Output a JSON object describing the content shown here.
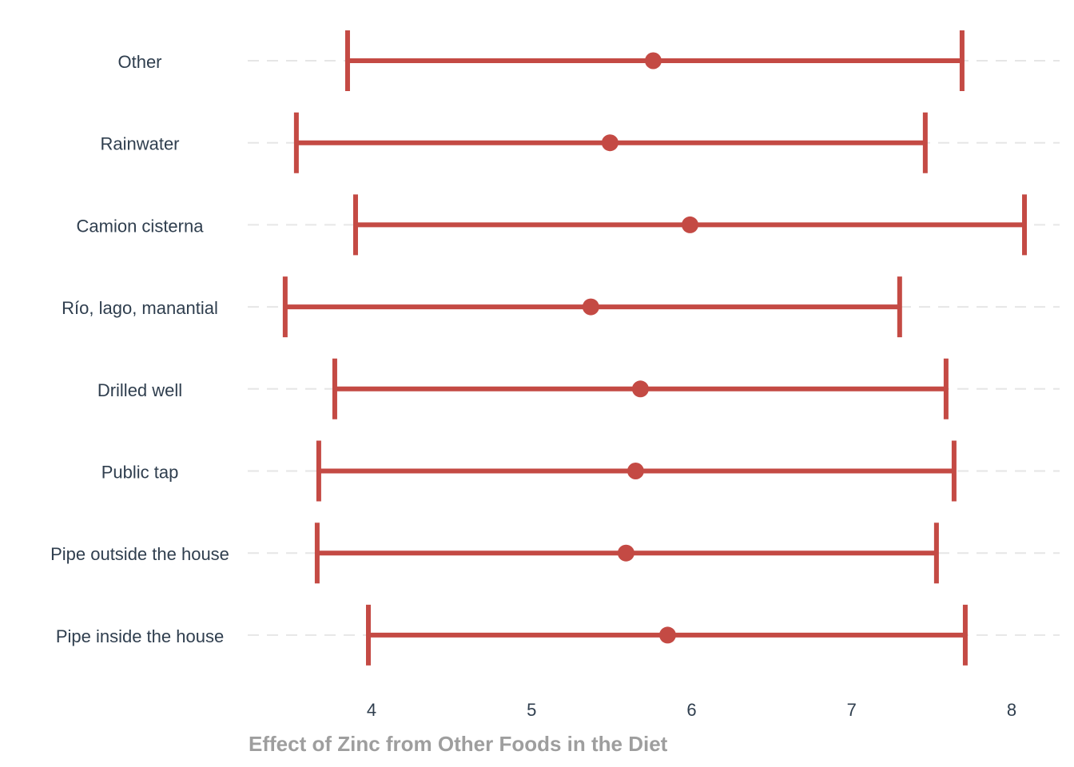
{
  "chart_data": {
    "type": "errorbar",
    "title": "",
    "xlabel": "Effect of Zinc from Other Foods in the Diet",
    "ylabel": "",
    "xlim": [
      3.25,
      8.3
    ],
    "x_ticks": [
      4,
      5,
      6,
      7,
      8
    ],
    "grid": "horizontal dashed",
    "color": "#c44a44",
    "categories": [
      "Other",
      "Rainwater",
      "Camion cisterna",
      "Río, lago, manantial",
      "Drilled well",
      "Public tap",
      "Pipe outside the house",
      "Pipe inside the house"
    ],
    "estimates": [
      5.76,
      5.49,
      5.99,
      5.37,
      5.68,
      5.65,
      5.59,
      5.85
    ],
    "lower": [
      3.85,
      3.53,
      3.9,
      3.46,
      3.77,
      3.67,
      3.66,
      3.98
    ],
    "upper": [
      7.69,
      7.46,
      8.08,
      7.3,
      7.59,
      7.64,
      7.53,
      7.71
    ]
  }
}
